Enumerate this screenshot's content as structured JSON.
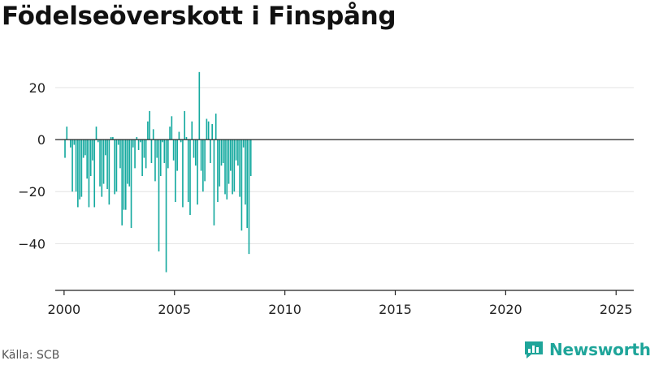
{
  "title": "Födelseöverskott i Finspång",
  "source": "Källa: SCB",
  "brand": {
    "name": "Newsworthy"
  },
  "colors": {
    "bar": "#14a99f",
    "axis": "#222222",
    "grid": "#e3e3e3",
    "brand": "#1fa59a"
  },
  "chart_data": {
    "type": "bar",
    "title": "Födelseöverskott i Finspång",
    "xlabel": "",
    "ylabel": "",
    "xlim": [
      1999.6,
      2025.8
    ],
    "ylim": [
      -58,
      30
    ],
    "yticks": [
      20,
      0,
      -20,
      -40
    ],
    "xticks": [
      2000,
      2005,
      2010,
      2015,
      2020,
      2025
    ],
    "grid": "horizontal",
    "start": {
      "year": 2000,
      "month": 1
    },
    "values": [
      -7,
      5,
      0,
      -3,
      -20,
      -2,
      -20,
      -26,
      -23,
      -22,
      -7,
      -6,
      -15,
      -26,
      -14,
      -8,
      -26,
      5,
      -1,
      -18,
      -22,
      -17,
      -6,
      -19,
      -25,
      1,
      1,
      -21,
      -20,
      -2,
      -11,
      -33,
      -27,
      -27,
      -17,
      -18,
      -34,
      -3,
      -11,
      1,
      -4,
      -1,
      -14,
      -7,
      -11,
      7,
      11,
      -9,
      4,
      -16,
      -7,
      -43,
      -14,
      -1,
      -9,
      -51,
      -11,
      5,
      9,
      -8,
      -24,
      -12,
      3,
      -1,
      -26,
      11,
      1,
      -24,
      -29,
      7,
      -7,
      -10,
      -25,
      26,
      -12,
      -20,
      -16,
      8,
      7,
      -9,
      6,
      -33,
      10,
      -24,
      -18,
      -10,
      -9,
      -21,
      -23,
      -17,
      -12,
      -21,
      -20,
      -8,
      -10,
      -22,
      -35,
      -3,
      -25,
      -34,
      -44,
      -14
    ]
  }
}
